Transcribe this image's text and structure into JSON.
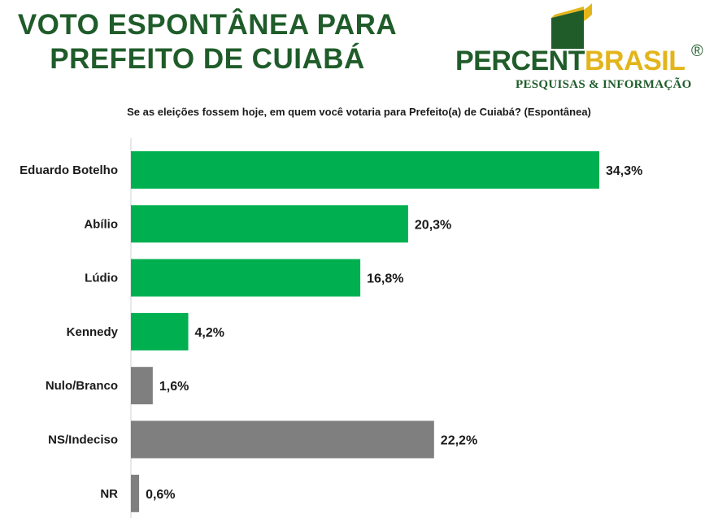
{
  "header": {
    "title_line1": "VOTO ESPONTÂNEA PARA",
    "title_line2": "PREFEITO DE CUIABÁ"
  },
  "logo": {
    "word_part1": "PERCENT",
    "word_part2": "BRASIL",
    "registered": "®",
    "subtitle": "PESQUISAS & INFORMAÇÃO"
  },
  "question": "Se as eleições fossem hoje, em quem você votaria para Prefeito(a) de Cuiabá? (Espontânea)",
  "colors": {
    "candidate": "#00b050",
    "other": "#7f7f7f",
    "brand_green": "#1f5c2a",
    "brand_yellow": "#e3b51b"
  },
  "chart_data": {
    "type": "bar",
    "orientation": "horizontal",
    "categories": [
      "Eduardo Botelho",
      "Abílio",
      "Lúdio",
      "Kennedy",
      "Nulo/Branco",
      "NS/Indeciso",
      "NR"
    ],
    "values": [
      34.3,
      20.3,
      16.8,
      4.2,
      1.6,
      22.2,
      0.6
    ],
    "value_labels": [
      "34,3%",
      "20,3%",
      "16,8%",
      "4,2%",
      "1,6%",
      "22,2%",
      "0,6%"
    ],
    "bar_groups": [
      "candidate",
      "candidate",
      "candidate",
      "candidate",
      "other",
      "other",
      "other"
    ],
    "title": "",
    "xlabel": "",
    "ylabel": "",
    "xlim": [
      0,
      34.3
    ],
    "grid": false
  }
}
